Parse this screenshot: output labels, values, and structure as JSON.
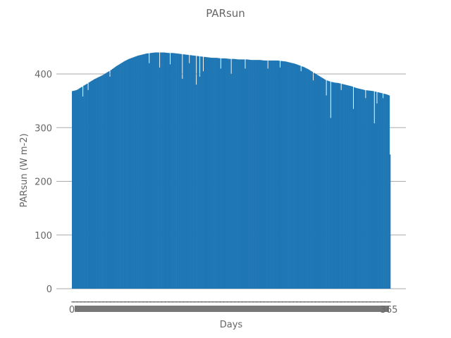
{
  "chart_data": {
    "type": "bar",
    "title": "PARsun",
    "xlabel": "Days",
    "ylabel": "PARsun (W m-2)",
    "ylim": [
      0,
      480
    ],
    "yticks": [
      0,
      100,
      200,
      300,
      400
    ],
    "grid": "horizontal",
    "legend": "none",
    "bar_color": "#1f77b4",
    "x": {
      "start": 0,
      "end": 365,
      "first_tick_label": "0",
      "last_tick_label": "365"
    },
    "envelope": [
      [
        0,
        368
      ],
      [
        5,
        370
      ],
      [
        10,
        375
      ],
      [
        15,
        380
      ],
      [
        20,
        385
      ],
      [
        25,
        390
      ],
      [
        30,
        394
      ],
      [
        35,
        398
      ],
      [
        40,
        403
      ],
      [
        45,
        408
      ],
      [
        50,
        414
      ],
      [
        55,
        419
      ],
      [
        60,
        424
      ],
      [
        65,
        428
      ],
      [
        70,
        431
      ],
      [
        75,
        434
      ],
      [
        80,
        436
      ],
      [
        85,
        438
      ],
      [
        90,
        439
      ],
      [
        95,
        440
      ],
      [
        100,
        440
      ],
      [
        105,
        440
      ],
      [
        110,
        439
      ],
      [
        115,
        439
      ],
      [
        120,
        438
      ],
      [
        125,
        437
      ],
      [
        130,
        436
      ],
      [
        135,
        435
      ],
      [
        140,
        434
      ],
      [
        145,
        433
      ],
      [
        150,
        432
      ],
      [
        155,
        431
      ],
      [
        160,
        430
      ],
      [
        165,
        430
      ],
      [
        170,
        429
      ],
      [
        175,
        429
      ],
      [
        180,
        428
      ],
      [
        185,
        428
      ],
      [
        190,
        427
      ],
      [
        195,
        427
      ],
      [
        200,
        427
      ],
      [
        205,
        426
      ],
      [
        210,
        426
      ],
      [
        215,
        426
      ],
      [
        220,
        425
      ],
      [
        225,
        425
      ],
      [
        230,
        425
      ],
      [
        235,
        425
      ],
      [
        240,
        424
      ],
      [
        245,
        423
      ],
      [
        250,
        421
      ],
      [
        255,
        419
      ],
      [
        260,
        416
      ],
      [
        265,
        413
      ],
      [
        270,
        409
      ],
      [
        275,
        404
      ],
      [
        280,
        399
      ],
      [
        285,
        394
      ],
      [
        290,
        389
      ],
      [
        295,
        386
      ],
      [
        300,
        384
      ],
      [
        305,
        383
      ],
      [
        310,
        381
      ],
      [
        315,
        379
      ],
      [
        320,
        377
      ],
      [
        325,
        374
      ],
      [
        330,
        372
      ],
      [
        335,
        370
      ],
      [
        340,
        369
      ],
      [
        345,
        368
      ],
      [
        350,
        366
      ],
      [
        355,
        364
      ],
      [
        360,
        362
      ],
      [
        363,
        360
      ],
      [
        364,
        250
      ]
    ],
    "dips": [
      [
        12,
        358
      ],
      [
        18,
        370
      ],
      [
        43,
        395
      ],
      [
        88,
        420
      ],
      [
        100,
        412
      ],
      [
        112,
        418
      ],
      [
        126,
        391
      ],
      [
        134,
        420
      ],
      [
        142,
        380
      ],
      [
        146,
        395
      ],
      [
        150,
        405
      ],
      [
        170,
        410
      ],
      [
        182,
        400
      ],
      [
        198,
        410
      ],
      [
        224,
        410
      ],
      [
        238,
        412
      ],
      [
        262,
        405
      ],
      [
        276,
        388
      ],
      [
        291,
        360
      ],
      [
        296,
        318
      ],
      [
        308,
        370
      ],
      [
        322,
        335
      ],
      [
        336,
        355
      ],
      [
        346,
        308
      ],
      [
        349,
        345
      ],
      [
        356,
        355
      ]
    ]
  }
}
